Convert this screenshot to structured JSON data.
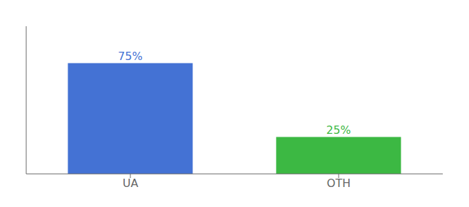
{
  "chart_data": {
    "type": "bar",
    "categories": [
      "UA",
      "OTH"
    ],
    "values": [
      75,
      25
    ],
    "value_labels": [
      "75%",
      "25%"
    ],
    "colors": [
      "#4472d4",
      "#3cb843"
    ],
    "ylim": [
      0,
      100
    ],
    "data_labels": true,
    "tick_labels": "x",
    "grid": false
  }
}
